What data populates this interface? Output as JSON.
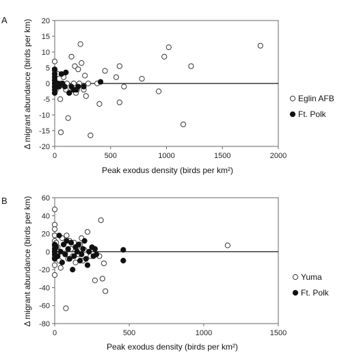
{
  "chart_data": [
    {
      "panel_label": "A",
      "type": "scatter",
      "xlabel": "Peak exodus density (birds per km²)",
      "ylabel": "Δ migrant abundance (birds per km)",
      "xlim": [
        0,
        2000
      ],
      "ylim": [
        -20,
        20
      ],
      "xticks": [
        0,
        500,
        1000,
        1500,
        2000
      ],
      "yticks": [
        -20,
        -15,
        -10,
        -5,
        0,
        5,
        10,
        15,
        20
      ],
      "zero_line": true,
      "legend_position": "right",
      "series": [
        {
          "name": "Eglin AFB",
          "marker": "open-circle",
          "points": [
            [
              0,
              7
            ],
            [
              0,
              4
            ],
            [
              0,
              1
            ],
            [
              0,
              0
            ],
            [
              0,
              -1
            ],
            [
              0,
              -3
            ],
            [
              10,
              -2
            ],
            [
              20,
              -1
            ],
            [
              30,
              3
            ],
            [
              50,
              -5
            ],
            [
              55,
              -15.5
            ],
            [
              60,
              0
            ],
            [
              80,
              2
            ],
            [
              100,
              -2
            ],
            [
              110,
              0
            ],
            [
              120,
              -11
            ],
            [
              130,
              -3
            ],
            [
              150,
              8.5
            ],
            [
              160,
              -2
            ],
            [
              170,
              0
            ],
            [
              180,
              5.5
            ],
            [
              190,
              -3
            ],
            [
              200,
              -2
            ],
            [
              210,
              4.5
            ],
            [
              220,
              0
            ],
            [
              230,
              12.5
            ],
            [
              240,
              6.5
            ],
            [
              260,
              -2
            ],
            [
              270,
              2.5
            ],
            [
              280,
              -4
            ],
            [
              300,
              0
            ],
            [
              320,
              -16.5
            ],
            [
              380,
              0
            ],
            [
              400,
              -6.5
            ],
            [
              450,
              4
            ],
            [
              550,
              2
            ],
            [
              580,
              5.5
            ],
            [
              580,
              -6
            ],
            [
              620,
              -1
            ],
            [
              780,
              1.5
            ],
            [
              930,
              -2.5
            ],
            [
              980,
              8.5
            ],
            [
              1020,
              11.5
            ],
            [
              1150,
              -13
            ],
            [
              1220,
              5.5
            ],
            [
              1840,
              12
            ]
          ]
        },
        {
          "name": "Ft. Polk",
          "marker": "filled-circle",
          "points": [
            [
              0,
              4.5
            ],
            [
              0,
              3
            ],
            [
              0,
              2
            ],
            [
              0,
              1
            ],
            [
              0,
              0
            ],
            [
              0,
              -1
            ],
            [
              0,
              -2
            ],
            [
              0,
              -3
            ],
            [
              15,
              0
            ],
            [
              20,
              -1
            ],
            [
              30,
              0
            ],
            [
              40,
              -1
            ],
            [
              60,
              3
            ],
            [
              70,
              0
            ],
            [
              90,
              -1
            ],
            [
              100,
              3.5
            ],
            [
              130,
              -3
            ],
            [
              150,
              -1
            ],
            [
              170,
              -2
            ],
            [
              190,
              -2
            ],
            [
              210,
              -1
            ],
            [
              260,
              -1
            ],
            [
              410,
              0.5
            ]
          ]
        }
      ]
    },
    {
      "panel_label": "B",
      "type": "scatter",
      "xlabel": "Peak exodus density (birds per km²)",
      "ylabel": "Δ migrant abundance (birds per km)",
      "xlim": [
        0,
        1500
      ],
      "ylim": [
        -80,
        60
      ],
      "xticks": [
        0,
        500,
        1000,
        1500
      ],
      "yticks": [
        -80,
        -60,
        -40,
        -20,
        0,
        20,
        40,
        60
      ],
      "zero_line": true,
      "legend_position": "right",
      "series": [
        {
          "name": "Yuma",
          "marker": "open-circle",
          "points": [
            [
              0,
              47
            ],
            [
              0,
              30
            ],
            [
              0,
              25
            ],
            [
              0,
              18
            ],
            [
              0,
              12
            ],
            [
              0,
              6
            ],
            [
              0,
              0
            ],
            [
              0,
              -6
            ],
            [
              0,
              -15
            ],
            [
              0,
              -26
            ],
            [
              10,
              10
            ],
            [
              15,
              -3
            ],
            [
              20,
              5
            ],
            [
              30,
              -10
            ],
            [
              40,
              -18
            ],
            [
              50,
              15
            ],
            [
              60,
              8
            ],
            [
              70,
              -2
            ],
            [
              75,
              -63
            ],
            [
              80,
              18
            ],
            [
              90,
              -8
            ],
            [
              100,
              12
            ],
            [
              110,
              3
            ],
            [
              120,
              -5
            ],
            [
              130,
              10
            ],
            [
              140,
              -12
            ],
            [
              150,
              5
            ],
            [
              160,
              -3
            ],
            [
              170,
              8
            ],
            [
              180,
              15
            ],
            [
              190,
              -10
            ],
            [
              200,
              2
            ],
            [
              220,
              22
            ],
            [
              240,
              -5
            ],
            [
              270,
              -32
            ],
            [
              300,
              -5
            ],
            [
              310,
              35
            ],
            [
              320,
              -30
            ],
            [
              330,
              -13
            ],
            [
              340,
              -44
            ],
            [
              1160,
              7
            ]
          ]
        },
        {
          "name": "Ft. Polk",
          "marker": "filled-circle",
          "points": [
            [
              0,
              8
            ],
            [
              0,
              3
            ],
            [
              0,
              0
            ],
            [
              0,
              -3
            ],
            [
              0,
              -8
            ],
            [
              10,
              5
            ],
            [
              20,
              -5
            ],
            [
              30,
              18
            ],
            [
              40,
              0
            ],
            [
              50,
              -12
            ],
            [
              60,
              8
            ],
            [
              70,
              -3
            ],
            [
              80,
              12
            ],
            [
              90,
              3
            ],
            [
              100,
              -8
            ],
            [
              110,
              10
            ],
            [
              120,
              -20
            ],
            [
              130,
              -5
            ],
            [
              140,
              5
            ],
            [
              150,
              0
            ],
            [
              160,
              8
            ],
            [
              170,
              -10
            ],
            [
              180,
              -3
            ],
            [
              190,
              3
            ],
            [
              200,
              12
            ],
            [
              210,
              -8
            ],
            [
              220,
              -15
            ],
            [
              230,
              0
            ],
            [
              250,
              5
            ],
            [
              260,
              -5
            ],
            [
              270,
              3
            ],
            [
              280,
              -3
            ],
            [
              460,
              2
            ],
            [
              460,
              -10
            ]
          ]
        }
      ]
    }
  ]
}
